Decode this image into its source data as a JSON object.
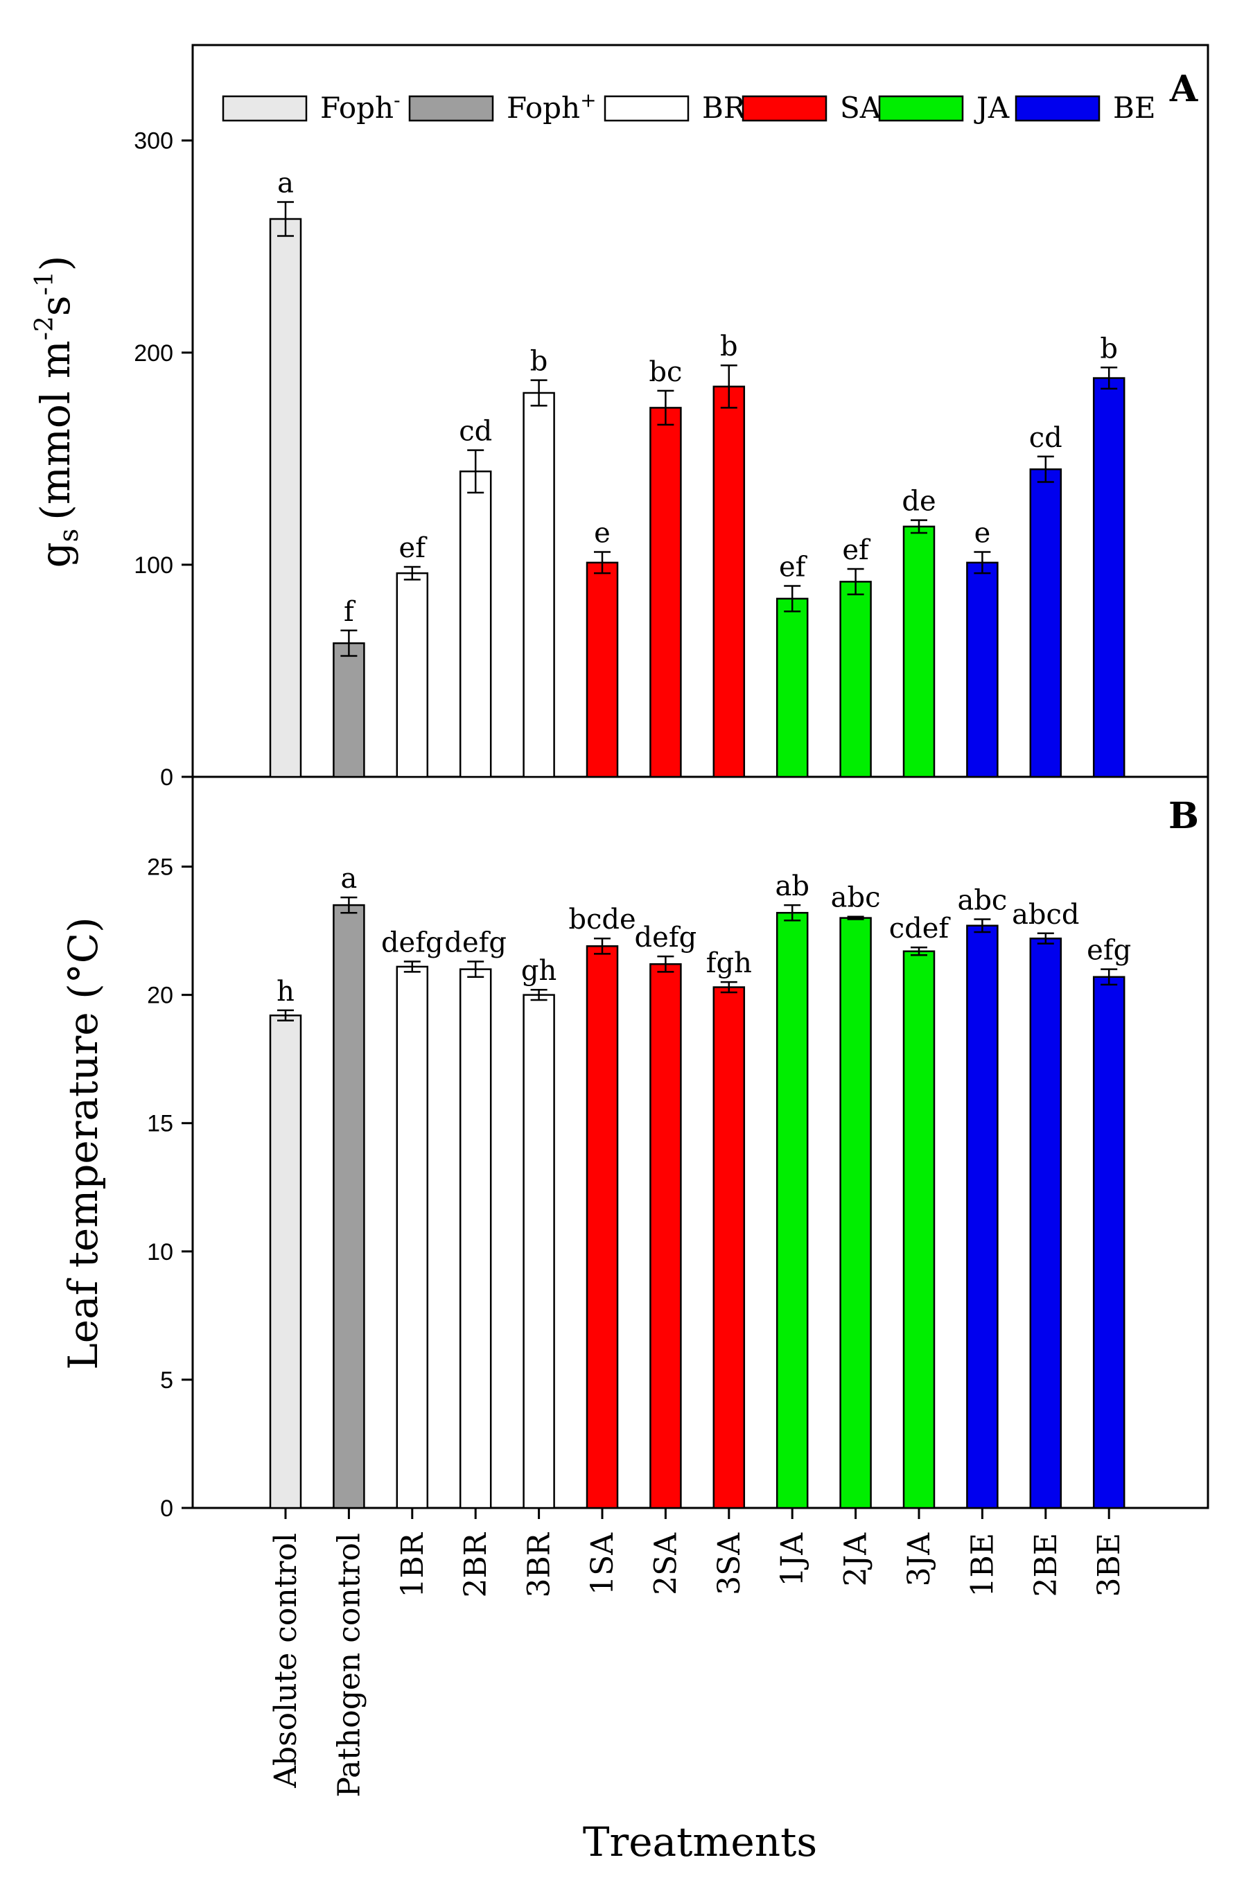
{
  "legend": [
    {
      "label": "Foph",
      "sup": "-",
      "color": "#e8e8e8"
    },
    {
      "label": "Foph",
      "sup": "+",
      "color": "#9e9e9e"
    },
    {
      "label": "BR",
      "sup": "",
      "color": "#ffffff"
    },
    {
      "label": "SA",
      "sup": "",
      "color": "#ff0000"
    },
    {
      "label": "JA",
      "sup": "",
      "color": "#00ee00"
    },
    {
      "label": "BE",
      "sup": "",
      "color": "#0000ee"
    }
  ],
  "chart_data": {
    "type": "bar",
    "xlabel": "Treatments",
    "categories": [
      "Absolute control",
      "Pathogen control",
      "1BR",
      "2BR",
      "3BR",
      "1SA",
      "2SA",
      "3SA",
      "1JA",
      "2JA",
      "3JA",
      "1BE",
      "2BE",
      "3BE"
    ],
    "colors": [
      "#e8e8e8",
      "#9e9e9e",
      "#ffffff",
      "#ffffff",
      "#ffffff",
      "#ff0000",
      "#ff0000",
      "#ff0000",
      "#00ee00",
      "#00ee00",
      "#00ee00",
      "#0000ee",
      "#0000ee",
      "#0000ee"
    ],
    "panels": [
      {
        "letter": "A",
        "ylabel_main": "g",
        "ylabel_sub": "s",
        "ylabel_unit": "(mmol m",
        "ylabel_exp1": "-2",
        "ylabel_mid": "s",
        "ylabel_exp2": "-1",
        "ylabel_close": ")",
        "ylim": [
          0,
          345
        ],
        "yticks": [
          0,
          100,
          200,
          300
        ],
        "values": [
          263,
          63,
          96,
          144,
          181,
          101,
          174,
          184,
          84,
          92,
          118,
          101,
          145,
          188
        ],
        "errors": [
          8,
          6,
          3,
          10,
          6,
          5,
          8,
          10,
          6,
          6,
          3,
          5,
          6,
          5
        ],
        "labels": [
          "a",
          "f",
          "ef",
          "cd",
          "b",
          "e",
          "bc",
          "b",
          "ef",
          "ef",
          "de",
          "e",
          "cd",
          "b"
        ]
      },
      {
        "letter": "B",
        "ylabel": "Leaf temperature (°C)",
        "ylim": [
          0,
          28.5
        ],
        "yticks": [
          0,
          5,
          10,
          15,
          20,
          25
        ],
        "values": [
          19.2,
          23.5,
          21.1,
          21.0,
          20.0,
          21.9,
          21.2,
          20.3,
          23.2,
          23.0,
          21.7,
          22.7,
          22.2,
          20.7
        ],
        "errors": [
          0.2,
          0.3,
          0.2,
          0.3,
          0.2,
          0.3,
          0.3,
          0.2,
          0.3,
          0.05,
          0.15,
          0.25,
          0.2,
          0.3
        ],
        "labels": [
          "h",
          "a",
          "defg",
          "defg",
          "gh",
          "bcde",
          "defg",
          "fgh",
          "ab",
          "abc",
          "cdef",
          "abc",
          "abcd",
          "efg"
        ]
      }
    ]
  }
}
